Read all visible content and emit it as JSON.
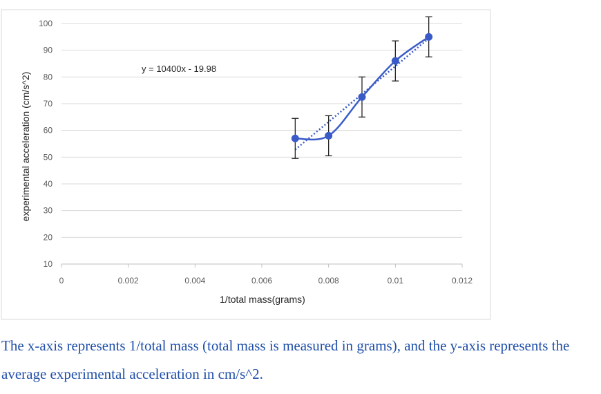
{
  "chart_data": {
    "type": "scatter",
    "title": "",
    "xlabel": "1/total mass(grams)",
    "ylabel": "experimental acceleration (cm/s^2)",
    "xlim": [
      0,
      0.012
    ],
    "ylim": [
      10,
      100
    ],
    "x_ticks": [
      0,
      0.002,
      0.004,
      0.006,
      0.008,
      0.01,
      0.012
    ],
    "x_tick_labels": [
      "0",
      "0.002",
      "0.004",
      "0.006",
      "0.008",
      "0.01",
      "0.012"
    ],
    "y_ticks": [
      10,
      20,
      30,
      40,
      50,
      60,
      70,
      80,
      90,
      100
    ],
    "y_tick_labels": [
      "10",
      "20",
      "30",
      "40",
      "50",
      "60",
      "70",
      "80",
      "90",
      "100"
    ],
    "grid": true,
    "series": [
      {
        "name": "experimental acceleration",
        "x": [
          0.007,
          0.008,
          0.009,
          0.01,
          0.011
        ],
        "values": [
          57,
          58,
          72.5,
          86,
          95
        ],
        "error": [
          7.5,
          7.5,
          7.5,
          7.5,
          7.5
        ],
        "color": "#3a5bc7",
        "line": "smooth"
      }
    ],
    "trendline": {
      "type": "linear",
      "slope": 10400,
      "intercept": -19.98,
      "x_range": [
        0.007,
        0.011
      ],
      "label": "y = 10400x - 19.98",
      "color": "#3a5bc7",
      "style": "dotted"
    }
  },
  "caption": "The x-axis represents 1/total mass (total mass is measured in grams), and the y-axis represents the average experimental acceleration in cm/s^2."
}
